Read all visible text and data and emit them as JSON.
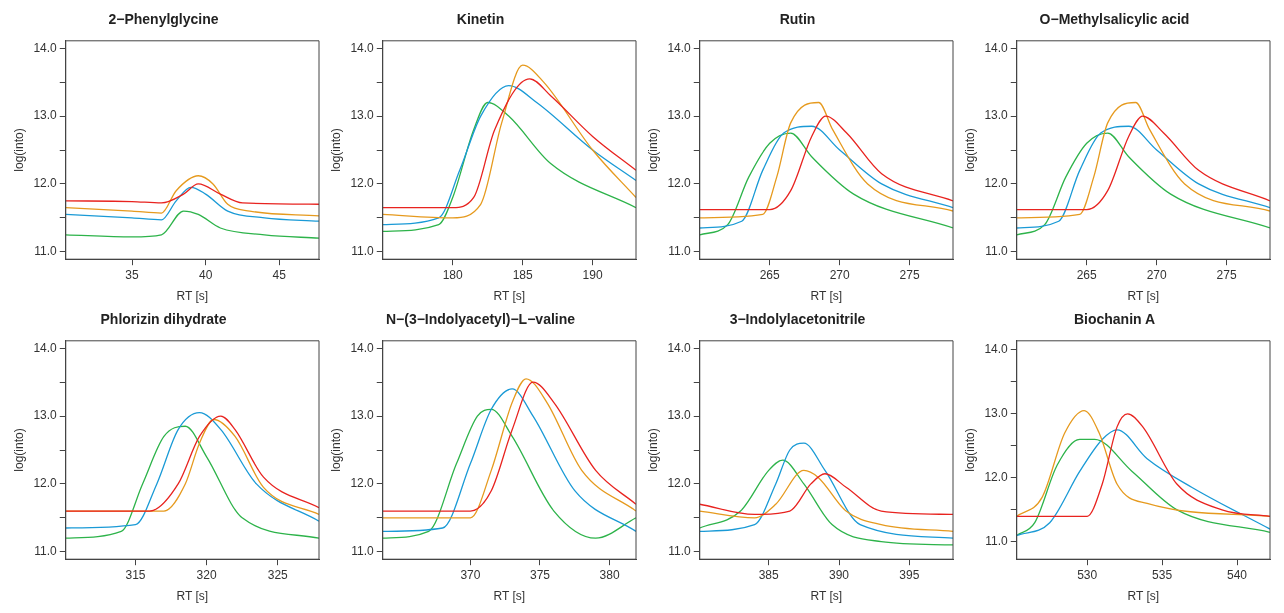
{
  "chart_data": [
    {
      "type": "line",
      "title": "2−Phenylglycine",
      "xlabel": "RT [s]",
      "ylabel": "log(into)",
      "xlim": [
        30.5,
        47.7
      ],
      "xticks": [
        35,
        40,
        45
      ],
      "ylim": [
        10.89,
        14.11
      ],
      "yticks": [
        {
          "value": 11,
          "label": "11.0"
        },
        {
          "value": 11.5,
          "label": null
        },
        {
          "value": 12,
          "label": "12.0"
        },
        {
          "value": 12.5,
          "label": null
        },
        {
          "value": 13,
          "label": "13.0"
        },
        {
          "value": 13.5,
          "label": null
        },
        {
          "value": 14,
          "label": "14.0"
        }
      ],
      "grid": false,
      "marker": "none",
      "series": [
        {
          "color": "#e8231f",
          "x": [
            30.5,
            35,
            37,
            38.5,
            39.5,
            41,
            42.5,
            47.7
          ],
          "values": [
            11.75,
            11.74,
            11.72,
            11.85,
            12.0,
            11.85,
            11.72,
            11.7
          ]
        },
        {
          "color": "#e69a1e",
          "x": [
            30.5,
            35,
            37,
            38,
            39.5,
            40.5,
            41.5,
            43,
            47.7
          ],
          "values": [
            11.65,
            11.6,
            11.57,
            11.9,
            12.12,
            12.0,
            11.7,
            11.6,
            11.53
          ]
        },
        {
          "color": "#1a9ad6",
          "x": [
            30.5,
            35,
            37,
            38,
            39,
            40,
            41.5,
            44,
            47.7
          ],
          "values": [
            11.55,
            11.5,
            11.47,
            11.75,
            11.95,
            11.85,
            11.6,
            11.5,
            11.45
          ]
        },
        {
          "color": "#2db34a",
          "x": [
            30.5,
            35,
            37,
            38.5,
            39.5,
            41,
            44,
            47.7
          ],
          "values": [
            11.25,
            11.22,
            11.25,
            11.6,
            11.55,
            11.35,
            11.25,
            11.2
          ]
        }
      ]
    },
    {
      "type": "line",
      "title": "Kinetin",
      "xlabel": "RT [s]",
      "ylabel": "log(into)",
      "xlim": [
        175,
        193.1
      ],
      "xticks": [
        180,
        185,
        190
      ],
      "ylim": [
        10.89,
        14.11
      ],
      "yticks": [
        {
          "value": 11,
          "label": "11.0"
        },
        {
          "value": 11.5,
          "label": null
        },
        {
          "value": 12,
          "label": "12.0"
        },
        {
          "value": 12.5,
          "label": null
        },
        {
          "value": 13,
          "label": "13.0"
        },
        {
          "value": 13.5,
          "label": null
        },
        {
          "value": 14,
          "label": "14.0"
        }
      ],
      "grid": false,
      "marker": "none",
      "series": [
        {
          "color": "#e8231f",
          "x": [
            175,
            180,
            181.5,
            183,
            185.5,
            187,
            190,
            193.1
          ],
          "values": [
            11.65,
            11.65,
            11.8,
            12.8,
            13.55,
            13.3,
            12.7,
            12.2
          ]
        },
        {
          "color": "#e69a1e",
          "x": [
            175,
            180,
            182,
            183.5,
            185,
            186.5,
            190,
            193.1
          ],
          "values": [
            11.55,
            11.5,
            11.7,
            12.9,
            13.75,
            13.5,
            12.5,
            11.8
          ]
        },
        {
          "color": "#1a9ad6",
          "x": [
            175,
            179,
            180.5,
            182,
            184,
            186,
            190,
            193.1
          ],
          "values": [
            11.4,
            11.5,
            12.2,
            13.0,
            13.45,
            13.2,
            12.5,
            12.05
          ]
        },
        {
          "color": "#2db34a",
          "x": [
            175,
            179,
            180,
            181.5,
            182.5,
            184,
            187,
            193.1
          ],
          "values": [
            11.3,
            11.4,
            11.8,
            12.8,
            13.2,
            13.0,
            12.3,
            11.65
          ]
        }
      ]
    },
    {
      "type": "line",
      "title": "Rutin",
      "xlabel": "RT [s]",
      "ylabel": "log(into)",
      "xlim": [
        260,
        278.1
      ],
      "xticks": [
        265,
        270,
        275
      ],
      "ylim": [
        10.89,
        14.11
      ],
      "yticks": [
        {
          "value": 11,
          "label": "11.0"
        },
        {
          "value": 11.5,
          "label": null
        },
        {
          "value": 12,
          "label": "12.0"
        },
        {
          "value": 12.5,
          "label": null
        },
        {
          "value": 13,
          "label": "13.0"
        },
        {
          "value": 13.5,
          "label": null
        },
        {
          "value": 14,
          "label": "14.0"
        }
      ],
      "grid": false,
      "marker": "none",
      "series": [
        {
          "color": "#e8231f",
          "x": [
            260,
            265,
            266.5,
            268,
            269,
            270.5,
            273,
            278.1
          ],
          "values": [
            11.62,
            11.62,
            11.9,
            12.7,
            13.0,
            12.75,
            12.15,
            11.75
          ]
        },
        {
          "color": "#e69a1e",
          "x": [
            260,
            264.5,
            265.5,
            266.5,
            268.5,
            269.5,
            272,
            278.1
          ],
          "values": [
            11.5,
            11.55,
            12.1,
            12.9,
            13.2,
            12.8,
            12.0,
            11.6
          ]
        },
        {
          "color": "#1a9ad6",
          "x": [
            260,
            263,
            264.5,
            266,
            268,
            270,
            273,
            278.1
          ],
          "values": [
            11.35,
            11.45,
            12.2,
            12.75,
            12.85,
            12.5,
            12.0,
            11.65
          ]
        },
        {
          "color": "#2db34a",
          "x": [
            260,
            262,
            263.5,
            265,
            266.5,
            268,
            271,
            278.1
          ],
          "values": [
            11.25,
            11.4,
            12.1,
            12.6,
            12.75,
            12.4,
            11.85,
            11.35
          ]
        }
      ]
    },
    {
      "type": "line",
      "title": "O−Methylsalicylic acid",
      "xlabel": "RT [s]",
      "ylabel": "log(into)",
      "xlim": [
        260,
        278.1
      ],
      "xticks": [
        265,
        270,
        275
      ],
      "ylim": [
        10.89,
        14.11
      ],
      "yticks": [
        {
          "value": 11,
          "label": "11.0"
        },
        {
          "value": 11.5,
          "label": null
        },
        {
          "value": 12,
          "label": "12.0"
        },
        {
          "value": 12.5,
          "label": null
        },
        {
          "value": 13,
          "label": "13.0"
        },
        {
          "value": 13.5,
          "label": null
        },
        {
          "value": 14,
          "label": "14.0"
        }
      ],
      "grid": false,
      "marker": "none",
      "series": [
        {
          "color": "#e8231f",
          "x": [
            260,
            265,
            266.5,
            268,
            269,
            270.5,
            273,
            278.1
          ],
          "values": [
            11.62,
            11.62,
            11.9,
            12.7,
            13.0,
            12.75,
            12.2,
            11.75
          ]
        },
        {
          "color": "#e69a1e",
          "x": [
            260,
            264.5,
            265.5,
            266.5,
            268.5,
            269.5,
            272,
            278.1
          ],
          "values": [
            11.5,
            11.55,
            12.1,
            12.9,
            13.2,
            12.8,
            12.0,
            11.6
          ]
        },
        {
          "color": "#1a9ad6",
          "x": [
            260,
            263,
            264.5,
            266,
            268,
            270,
            273,
            278.1
          ],
          "values": [
            11.35,
            11.45,
            12.2,
            12.75,
            12.85,
            12.5,
            12.0,
            11.65
          ]
        },
        {
          "color": "#2db34a",
          "x": [
            260,
            262,
            263.5,
            265,
            266.5,
            268,
            271,
            278.1
          ],
          "values": [
            11.25,
            11.4,
            12.1,
            12.6,
            12.75,
            12.4,
            11.85,
            11.35
          ]
        }
      ]
    },
    {
      "type": "line",
      "title": "Phlorizin dihydrate",
      "xlabel": "RT [s]",
      "ylabel": "log(into)",
      "xlim": [
        310.1,
        327.9
      ],
      "xticks": [
        315,
        320,
        325
      ],
      "ylim": [
        10.89,
        14.11
      ],
      "yticks": [
        {
          "value": 11,
          "label": "11.0"
        },
        {
          "value": 11.5,
          "label": null
        },
        {
          "value": 12,
          "label": "12.0"
        },
        {
          "value": 12.5,
          "label": null
        },
        {
          "value": 13,
          "label": "13.0"
        },
        {
          "value": 13.5,
          "label": null
        },
        {
          "value": 14,
          "label": "14.0"
        }
      ],
      "grid": false,
      "marker": "none",
      "series": [
        {
          "color": "#e8231f",
          "x": [
            310.1,
            316,
            318,
            319.5,
            321,
            322,
            324,
            327.9
          ],
          "values": [
            11.6,
            11.6,
            12.0,
            12.7,
            13.0,
            12.8,
            12.1,
            11.65
          ]
        },
        {
          "color": "#e69a1e",
          "x": [
            310.1,
            317,
            318.5,
            319.5,
            320.5,
            322,
            324,
            327.9
          ],
          "values": [
            11.6,
            11.6,
            12.0,
            12.6,
            12.95,
            12.7,
            11.95,
            11.55
          ]
        },
        {
          "color": "#1a9ad6",
          "x": [
            310.1,
            315,
            316.5,
            318,
            319.5,
            321,
            323.5,
            327.9
          ],
          "values": [
            11.35,
            11.4,
            12.0,
            12.8,
            13.05,
            12.8,
            12.0,
            11.45
          ]
        },
        {
          "color": "#2db34a",
          "x": [
            310.1,
            314,
            315.5,
            317,
            318.5,
            320,
            322.5,
            327.9
          ],
          "values": [
            11.2,
            11.3,
            12.0,
            12.7,
            12.85,
            12.4,
            11.5,
            11.2
          ]
        }
      ]
    },
    {
      "type": "line",
      "title": "N−(3−Indolyacetyl)−L−valine",
      "xlabel": "RT [s]",
      "ylabel": "log(into)",
      "xlim": [
        363.7,
        381.9
      ],
      "xticks": [
        370,
        375,
        380
      ],
      "ylim": [
        10.89,
        14.11
      ],
      "yticks": [
        {
          "value": 11,
          "label": "11.0"
        },
        {
          "value": 11.5,
          "label": null
        },
        {
          "value": 12,
          "label": "12.0"
        },
        {
          "value": 12.5,
          "label": null
        },
        {
          "value": 13,
          "label": "13.0"
        },
        {
          "value": 13.5,
          "label": null
        },
        {
          "value": 14,
          "label": "14.0"
        }
      ],
      "grid": false,
      "marker": "none",
      "series": [
        {
          "color": "#e8231f",
          "x": [
            363.7,
            370,
            371.5,
            373,
            374.5,
            376,
            379,
            381.9
          ],
          "values": [
            11.6,
            11.6,
            11.9,
            12.8,
            13.5,
            13.2,
            12.2,
            11.7
          ]
        },
        {
          "color": "#e69a1e",
          "x": [
            363.7,
            370,
            371.5,
            373,
            374,
            375.5,
            378,
            381.9
          ],
          "values": [
            11.5,
            11.5,
            12.2,
            13.2,
            13.55,
            13.2,
            12.2,
            11.6
          ]
        },
        {
          "color": "#1a9ad6",
          "x": [
            363.7,
            368,
            370,
            371.5,
            373,
            374.5,
            377.5,
            381.9
          ],
          "values": [
            11.3,
            11.35,
            12.3,
            13.1,
            13.4,
            13.0,
            11.9,
            11.3
          ]
        },
        {
          "color": "#2db34a",
          "x": [
            363.7,
            367,
            369,
            370.5,
            371.5,
            373,
            376,
            379,
            381.9
          ],
          "values": [
            11.2,
            11.3,
            12.3,
            13.0,
            13.1,
            12.7,
            11.6,
            11.2,
            11.5
          ]
        }
      ]
    },
    {
      "type": "line",
      "title": "3−Indolylacetonitrile",
      "xlabel": "RT [s]",
      "ylabel": "log(into)",
      "xlim": [
        380.1,
        398.1
      ],
      "xticks": [
        385,
        390,
        395
      ],
      "ylim": [
        10.89,
        14.11
      ],
      "yticks": [
        {
          "value": 11,
          "label": "11.0"
        },
        {
          "value": 11.5,
          "label": null
        },
        {
          "value": 12,
          "label": "12.0"
        },
        {
          "value": 12.5,
          "label": null
        },
        {
          "value": 13,
          "label": "13.0"
        },
        {
          "value": 13.5,
          "label": null
        },
        {
          "value": 14,
          "label": "14.0"
        }
      ],
      "grid": false,
      "marker": "none",
      "series": [
        {
          "color": "#e8231f",
          "x": [
            380.1,
            384,
            386.5,
            388,
            389,
            390.5,
            393,
            398.1
          ],
          "values": [
            11.7,
            11.55,
            11.6,
            12.0,
            12.15,
            11.95,
            11.6,
            11.55
          ]
        },
        {
          "color": "#e69a1e",
          "x": [
            380.1,
            384,
            385.5,
            387.5,
            388.5,
            390.5,
            393,
            398.1
          ],
          "values": [
            11.6,
            11.5,
            11.7,
            12.2,
            12.1,
            11.6,
            11.4,
            11.3
          ]
        },
        {
          "color": "#1a9ad6",
          "x": [
            380.1,
            384,
            385.5,
            386.5,
            387.5,
            389,
            391.5,
            398.1
          ],
          "values": [
            11.3,
            11.4,
            12.0,
            12.5,
            12.6,
            12.2,
            11.4,
            11.2
          ]
        },
        {
          "color": "#2db34a",
          "x": [
            380.1,
            383,
            385,
            386,
            387.5,
            389.5,
            393,
            398.1
          ],
          "values": [
            11.35,
            11.6,
            12.2,
            12.35,
            12.0,
            11.4,
            11.15,
            11.1
          ]
        }
      ]
    },
    {
      "type": "line",
      "title": "Biochanin A",
      "xlabel": "RT [s]",
      "ylabel": "log(into)",
      "xlim": [
        525.3,
        542.2
      ],
      "xticks": [
        530,
        535,
        540
      ],
      "ylim": [
        10.73,
        14.14
      ],
      "yticks": [
        {
          "value": 11,
          "label": "11.0"
        },
        {
          "value": 11.5,
          "label": null
        },
        {
          "value": 12,
          "label": "12.0"
        },
        {
          "value": 12.5,
          "label": null
        },
        {
          "value": 13,
          "label": "13.0"
        },
        {
          "value": 13.5,
          "label": null
        },
        {
          "value": 14,
          "label": "14.0"
        }
      ],
      "grid": false,
      "marker": "none",
      "series": [
        {
          "color": "#e8231f",
          "x": [
            525.3,
            530,
            531,
            532,
            532.7,
            533.7,
            536,
            539,
            542.2
          ],
          "values": [
            11.4,
            11.4,
            11.9,
            12.8,
            13.0,
            12.8,
            11.9,
            11.5,
            11.4
          ]
        },
        {
          "color": "#e69a1e",
          "x": [
            525.3,
            527,
            528.5,
            529.8,
            530.8,
            532,
            534,
            542.2
          ],
          "values": [
            11.4,
            11.7,
            12.7,
            13.05,
            12.7,
            11.9,
            11.6,
            11.4
          ]
        },
        {
          "color": "#1a9ad6",
          "x": [
            525.3,
            527.5,
            529.5,
            531,
            532,
            534,
            537,
            542.2
          ],
          "values": [
            11.1,
            11.3,
            12.1,
            12.6,
            12.75,
            12.3,
            11.85,
            11.2
          ]
        },
        {
          "color": "#2db34a",
          "x": [
            525.3,
            526.5,
            528,
            529.5,
            530.5,
            533,
            536,
            542.2
          ],
          "values": [
            11.1,
            11.3,
            12.2,
            12.6,
            12.6,
            12.1,
            11.5,
            11.15
          ]
        }
      ]
    }
  ]
}
